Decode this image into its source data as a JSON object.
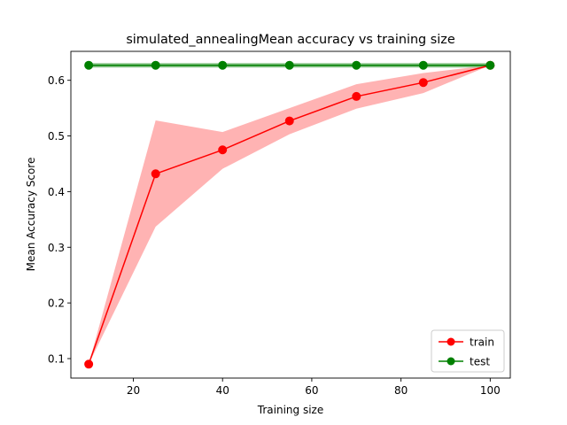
{
  "chart_data": {
    "type": "line",
    "title": "simulated_annealingMean accuracy vs training size",
    "xlabel": "Training size",
    "ylabel": "Mean Accuracy Score",
    "xlim": [
      6,
      104.5
    ],
    "ylim": [
      0.065,
      0.652
    ],
    "xticks": [
      20,
      40,
      60,
      80,
      100
    ],
    "yticks": [
      0.1,
      0.2,
      0.3,
      0.4,
      0.5,
      0.6
    ],
    "xtick_labels": [
      "20",
      "40",
      "60",
      "80",
      "100"
    ],
    "ytick_labels": [
      "0.1",
      "0.2",
      "0.3",
      "0.4",
      "0.5",
      "0.6"
    ],
    "grid": false,
    "legend_position": "lower right",
    "x": [
      10,
      25,
      40,
      55,
      70,
      85,
      100
    ],
    "series": [
      {
        "name": "train",
        "color": "#ff0000",
        "band_color": "#ff9999",
        "values": [
          0.09,
          0.432,
          0.475,
          0.527,
          0.571,
          0.596,
          0.627
        ],
        "lower": [
          0.09,
          0.337,
          0.441,
          0.503,
          0.549,
          0.577,
          0.627
        ],
        "upper": [
          0.09,
          0.528,
          0.507,
          0.55,
          0.593,
          0.613,
          0.627
        ]
      },
      {
        "name": "test",
        "color": "#008000",
        "band_color": "#66b266",
        "values": [
          0.627,
          0.627,
          0.627,
          0.627,
          0.627,
          0.627,
          0.627
        ],
        "lower": [
          0.623,
          0.623,
          0.623,
          0.623,
          0.623,
          0.623,
          0.623
        ],
        "upper": [
          0.631,
          0.631,
          0.631,
          0.631,
          0.631,
          0.631,
          0.631
        ]
      }
    ]
  }
}
